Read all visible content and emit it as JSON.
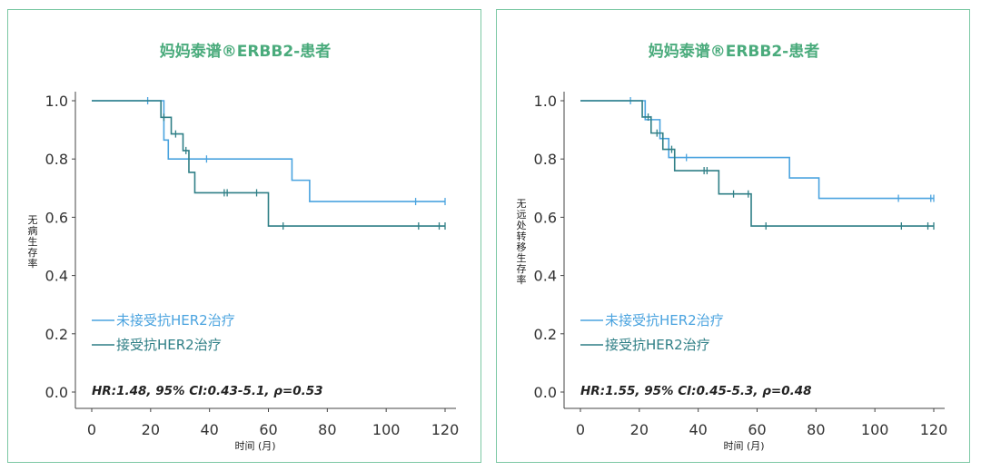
{
  "colors": {
    "untreated": "#4aa3df",
    "treated": "#2f7f86",
    "accent": "#4aab7c",
    "border": "#7cc8a4"
  },
  "chart_data": [
    {
      "type": "line",
      "title": "妈妈泰谱®ERBB2-患者",
      "xlabel": "时间 (月)",
      "ylabel": "无病生存率",
      "xlim": [
        0,
        120
      ],
      "ylim": [
        0.0,
        1.0
      ],
      "x_ticks": [
        "0",
        "20",
        "40",
        "60",
        "80",
        "100",
        "120"
      ],
      "y_ticks": [
        "0.0",
        "0.2",
        "0.4",
        "0.6",
        "0.8",
        "1.0"
      ],
      "legend_position": "lower-left",
      "annotation": "HR:1.48, 95% CI:0.43-5.1, ρ=0.53",
      "series": [
        {
          "name": "未接受抗HER2治疗",
          "color_key": "untreated",
          "steps": [
            [
              0,
              1.0
            ],
            [
              24.5,
              0.865
            ],
            [
              26,
              0.8
            ],
            [
              68,
              0.727
            ],
            [
              74,
              0.654
            ],
            [
              120,
              0.654
            ]
          ],
          "censors": [
            [
              19,
              1.0
            ],
            [
              39,
              0.8
            ],
            [
              110,
              0.654
            ],
            [
              120,
              0.654
            ]
          ]
        },
        {
          "name": "接受抗HER2治疗",
          "color_key": "treated",
          "steps": [
            [
              0,
              1.0
            ],
            [
              23.5,
              0.943
            ],
            [
              27,
              0.886
            ],
            [
              31,
              0.829
            ],
            [
              33,
              0.754
            ],
            [
              35,
              0.684
            ],
            [
              60,
              0.57
            ],
            [
              120,
              0.57
            ]
          ],
          "censors": [
            [
              24.5,
              0.943
            ],
            [
              28.5,
              0.886
            ],
            [
              32,
              0.829
            ],
            [
              45,
              0.684
            ],
            [
              46,
              0.684
            ],
            [
              56,
              0.684
            ],
            [
              65,
              0.57
            ],
            [
              111,
              0.57
            ],
            [
              118,
              0.57
            ],
            [
              120,
              0.57
            ]
          ]
        }
      ]
    },
    {
      "type": "line",
      "title": "妈妈泰谱®ERBB2-患者",
      "xlabel": "时间 (月)",
      "ylabel": "无远处转移生存率",
      "xlim": [
        0,
        120
      ],
      "ylim": [
        0.0,
        1.0
      ],
      "x_ticks": [
        "0",
        "20",
        "40",
        "60",
        "80",
        "100",
        "120"
      ],
      "y_ticks": [
        "0.0",
        "0.2",
        "0.4",
        "0.6",
        "0.8",
        "1.0"
      ],
      "legend_position": "lower-left",
      "annotation": "HR:1.55, 95% CI:0.45-5.3, ρ=0.48",
      "series": [
        {
          "name": "未接受抗HER2治疗",
          "color_key": "untreated",
          "steps": [
            [
              0,
              1.0
            ],
            [
              22,
              0.935
            ],
            [
              27,
              0.87
            ],
            [
              30,
              0.805
            ],
            [
              71,
              0.735
            ],
            [
              81,
              0.665
            ],
            [
              120,
              0.665
            ]
          ],
          "censors": [
            [
              17,
              1.0
            ],
            [
              24,
              0.935
            ],
            [
              36,
              0.805
            ],
            [
              108,
              0.665
            ],
            [
              119,
              0.665
            ],
            [
              120,
              0.665
            ]
          ]
        },
        {
          "name": "接受抗HER2治疗",
          "color_key": "treated",
          "steps": [
            [
              0,
              1.0
            ],
            [
              21,
              0.944
            ],
            [
              24,
              0.889
            ],
            [
              28,
              0.833
            ],
            [
              32,
              0.76
            ],
            [
              47,
              0.68
            ],
            [
              58,
              0.57
            ],
            [
              120,
              0.57
            ]
          ],
          "censors": [
            [
              23,
              0.944
            ],
            [
              26,
              0.889
            ],
            [
              31,
              0.833
            ],
            [
              42,
              0.76
            ],
            [
              43,
              0.76
            ],
            [
              52,
              0.68
            ],
            [
              57,
              0.68
            ],
            [
              63,
              0.57
            ],
            [
              109,
              0.57
            ],
            [
              118,
              0.57
            ],
            [
              120,
              0.57
            ]
          ]
        }
      ]
    }
  ]
}
